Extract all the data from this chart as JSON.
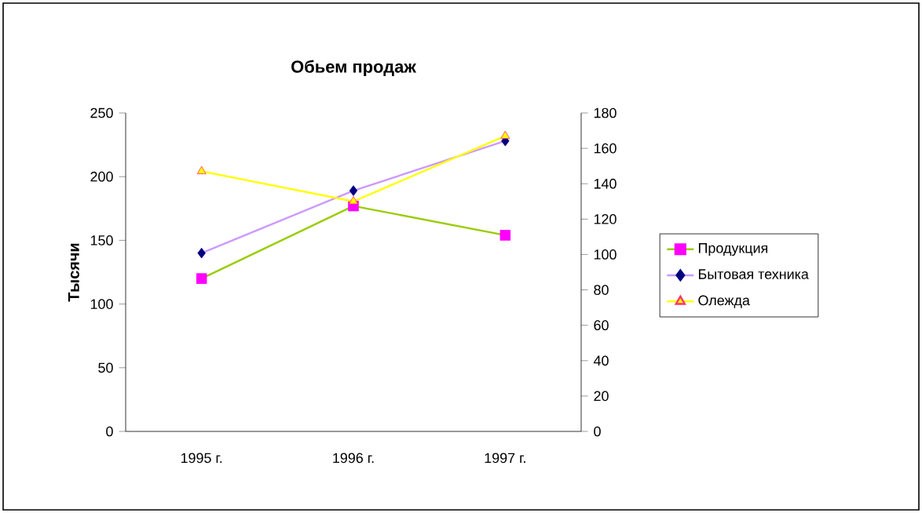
{
  "chart_data": {
    "type": "line",
    "title": "Обьем продаж",
    "ylabel": "Тысячи",
    "categories": [
      "1995 г.",
      "1996 г.",
      "1997 г."
    ],
    "series": [
      {
        "name": "Продукция",
        "color": "#99cc00",
        "colors": [
          "#ff00ff",
          "#ff00ff",
          "#ff00ff"
        ],
        "marker": "square",
        "values": [
          120,
          177,
          154
        ]
      },
      {
        "name": "Бытовая техника",
        "color": "#cc99ff",
        "colors": [
          "#000080",
          "#000080",
          "#000080"
        ],
        "marker": "diamond",
        "values": [
          140,
          189,
          228
        ]
      },
      {
        "name": "Олежда",
        "color": "#ffff00",
        "colors": [
          "#ff3366",
          "#ff3366",
          "#ff3366"
        ],
        "marker": "triangle",
        "axis": "y2",
        "values": [
          147,
          130,
          167
        ]
      }
    ],
    "ylim": [
      0,
      250
    ],
    "yticks": [
      0,
      50,
      100,
      150,
      200,
      250
    ],
    "y2lim": [
      0,
      180
    ],
    "y2ticks": [
      0,
      20,
      40,
      60,
      80,
      100,
      120,
      140,
      160,
      180
    ],
    "legend": "right",
    "grid": false
  }
}
